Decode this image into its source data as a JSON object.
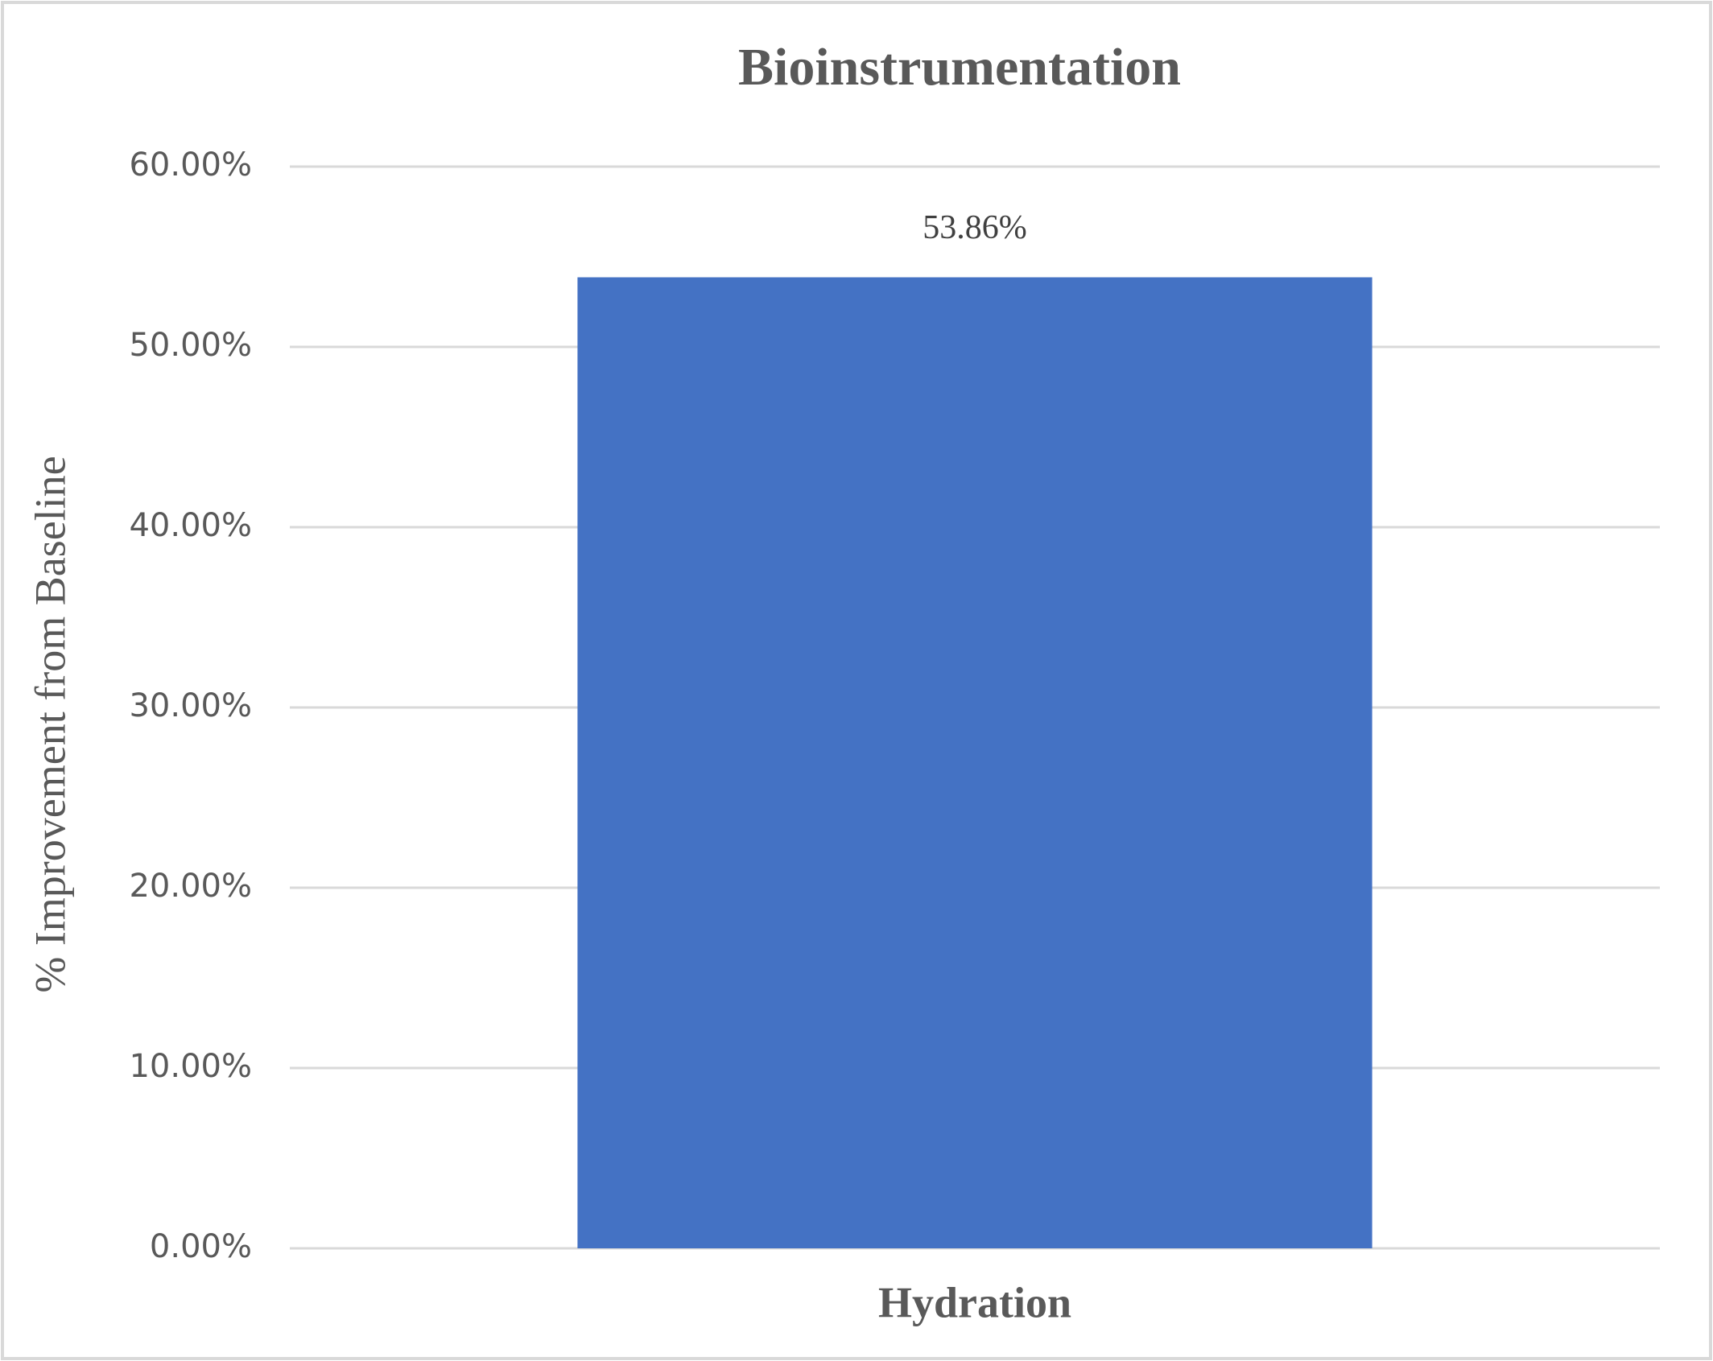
{
  "chart_data": {
    "type": "bar",
    "title": "Bioinstrumentation",
    "y_label": "% Improvement from Baseline",
    "categories": [
      "Hydration"
    ],
    "values": [
      53.86
    ],
    "value_labels": [
      "53.86%"
    ],
    "color": "#4472c4",
    "ylim": [
      0,
      60
    ],
    "yticks": [
      {
        "value": 0,
        "label": "0.00%"
      },
      {
        "value": 10,
        "label": "10.00%"
      },
      {
        "value": 20,
        "label": "20.00%"
      },
      {
        "value": 30,
        "label": "30.00%"
      },
      {
        "value": 40,
        "label": "40.00%"
      },
      {
        "value": 50,
        "label": "50.00%"
      },
      {
        "value": 60,
        "label": "60.00%"
      }
    ],
    "grid": true
  }
}
